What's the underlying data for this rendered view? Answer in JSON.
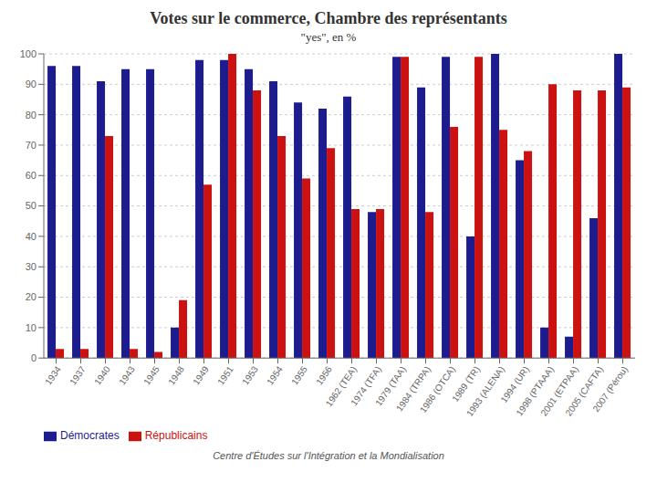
{
  "chart_data": {
    "type": "bar",
    "title": "Votes sur le commerce, Chambre des représentants",
    "subtitle": "\"yes\", en %",
    "categories": [
      "1934",
      "1937",
      "1940",
      "1943",
      "1945",
      "1948",
      "1949",
      "1951",
      "1953",
      "1954",
      "1955",
      "1956",
      "1962 (TEA)",
      "1974 (TFA)",
      "1979 (TAA)",
      "1984 (TRPA)",
      "1986 (OTCA)",
      "1989 (TR)",
      "1993 (ALENA)",
      "1994 (UR)",
      "1998 (PTAAA)",
      "2001 (ETPAA)",
      "2005 (CAFTA)",
      "2007 (Pérou)"
    ],
    "series": [
      {
        "name": "Démocrates",
        "color": "#1c1c8f",
        "values": [
          96,
          96,
          91,
          95,
          95,
          10,
          98,
          98,
          95,
          91,
          84,
          82,
          86,
          48,
          99,
          89,
          99,
          40,
          100,
          65,
          10,
          7,
          46,
          100
        ]
      },
      {
        "name": "Républicains",
        "color": "#cc1111",
        "values": [
          3,
          3,
          73,
          3,
          2,
          19,
          57,
          100,
          88,
          73,
          59,
          69,
          49,
          49,
          99,
          48,
          76,
          99,
          75,
          68,
          90,
          88,
          88,
          89
        ]
      }
    ],
    "ylim": [
      0,
      100
    ],
    "yticks": [
      0,
      10,
      20,
      30,
      40,
      50,
      60,
      70,
      80,
      90,
      100
    ],
    "grid": true,
    "legend": "bottom",
    "annotations": [
      "Centre d'Études sur l'Intégration et la Mondialisation"
    ]
  }
}
